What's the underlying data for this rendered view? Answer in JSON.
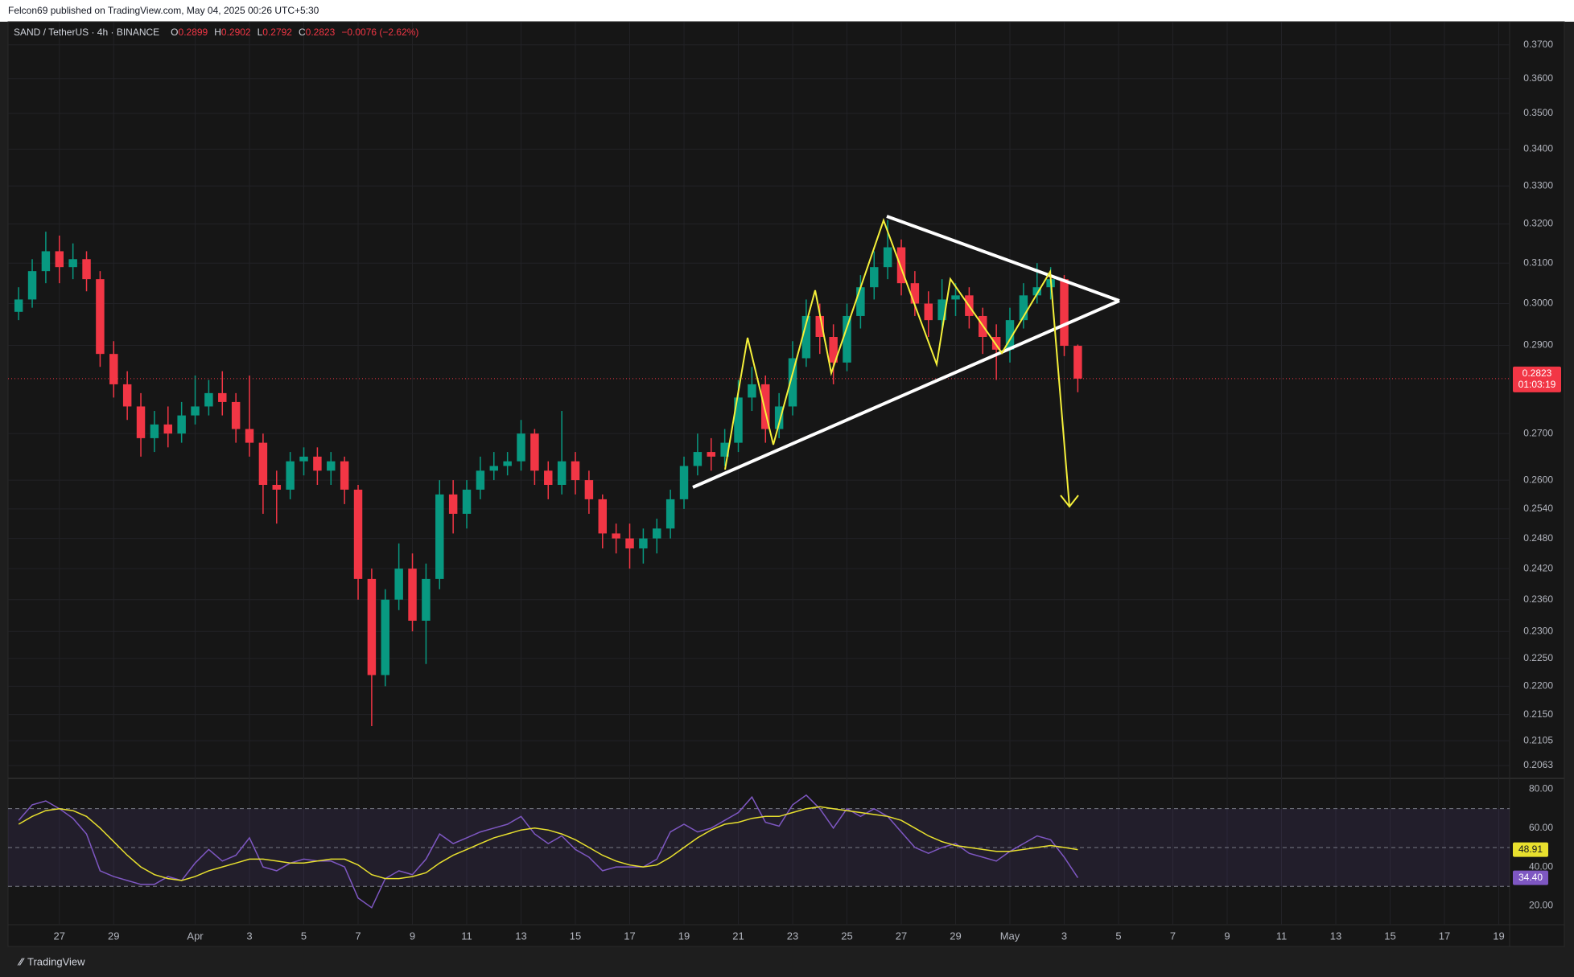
{
  "header": {
    "publisher": "Felcon69 published on TradingView.com, May 04, 2025 00:26 UTC+5:30"
  },
  "footer": {
    "brand": "TradingView"
  },
  "chart_data": [
    {
      "type": "candlestick",
      "symbol": "SAND / TetherUS · 4h · BINANCE",
      "ohlc_letters": [
        "O",
        "H",
        "L",
        "C"
      ],
      "change_label": "−0.0076 (−2.62%)",
      "countdown": "01:03:19",
      "up_color": "#089981",
      "down_color": "#f23645",
      "log_scale": true,
      "grid": true,
      "x": [
        -1.5,
        -1,
        -0.5,
        0,
        0.5,
        1,
        1.5,
        2,
        2.5,
        3,
        3.5,
        4,
        4.5,
        5,
        5.5,
        6,
        6.5,
        7,
        7.5,
        8,
        8.5,
        9,
        9.5,
        10,
        10.5,
        11,
        11.5,
        12,
        12.5,
        13,
        13.5,
        14,
        14.5,
        15,
        15.5,
        16,
        16.5,
        17,
        17.5,
        18,
        18.5,
        19,
        19.5,
        20,
        20.5,
        21,
        21.5,
        22,
        22.5,
        23,
        23.5,
        24,
        24.5,
        25,
        25.5,
        26,
        26.5,
        27,
        27.5,
        28,
        28.5,
        29,
        29.5,
        30,
        30.5,
        31,
        31.5,
        32,
        32.5,
        33,
        33.5,
        34,
        34.5,
        35,
        35.5,
        36,
        36.5,
        37,
        37.5
      ],
      "open": [
        0.298,
        0.301,
        0.308,
        0.313,
        0.309,
        0.311,
        0.306,
        0.288,
        0.281,
        0.276,
        0.269,
        0.272,
        0.27,
        0.274,
        0.276,
        0.279,
        0.277,
        0.271,
        0.268,
        0.259,
        0.258,
        0.264,
        0.265,
        0.262,
        0.264,
        0.258,
        0.24,
        0.222,
        0.236,
        0.242,
        0.232,
        0.24,
        0.257,
        0.253,
        0.258,
        0.262,
        0.263,
        0.264,
        0.27,
        0.262,
        0.259,
        0.264,
        0.26,
        0.256,
        0.249,
        0.248,
        0.246,
        0.248,
        0.25,
        0.256,
        0.263,
        0.266,
        0.265,
        0.268,
        0.278,
        0.281,
        0.271,
        0.276,
        0.287,
        0.297,
        0.292,
        0.286,
        0.297,
        0.304,
        0.309,
        0.314,
        0.305,
        0.3,
        0.296,
        0.301,
        0.302,
        0.297,
        0.292,
        0.289,
        0.296,
        0.302,
        0.304,
        0.306,
        0.2899
      ],
      "high": [
        0.304,
        0.311,
        0.318,
        0.317,
        0.315,
        0.313,
        0.308,
        0.291,
        0.284,
        0.279,
        0.275,
        0.276,
        0.277,
        0.283,
        0.282,
        0.284,
        0.279,
        0.283,
        0.27,
        0.262,
        0.266,
        0.267,
        0.267,
        0.266,
        0.265,
        0.259,
        0.242,
        0.238,
        0.247,
        0.245,
        0.243,
        0.26,
        0.26,
        0.26,
        0.265,
        0.266,
        0.266,
        0.273,
        0.271,
        0.264,
        0.275,
        0.266,
        0.262,
        0.257,
        0.251,
        0.251,
        0.25,
        0.252,
        0.258,
        0.265,
        0.27,
        0.269,
        0.271,
        0.282,
        0.285,
        0.283,
        0.279,
        0.291,
        0.301,
        0.3,
        0.295,
        0.3,
        0.307,
        0.313,
        0.321,
        0.316,
        0.308,
        0.303,
        0.306,
        0.305,
        0.304,
        0.299,
        0.295,
        0.299,
        0.305,
        0.31,
        0.309,
        0.307,
        0.2902
      ],
      "low": [
        0.296,
        0.299,
        0.305,
        0.305,
        0.306,
        0.303,
        0.285,
        0.278,
        0.273,
        0.265,
        0.266,
        0.267,
        0.268,
        0.272,
        0.274,
        0.274,
        0.268,
        0.265,
        0.253,
        0.251,
        0.256,
        0.261,
        0.259,
        0.259,
        0.255,
        0.236,
        0.213,
        0.22,
        0.234,
        0.23,
        0.224,
        0.238,
        0.249,
        0.25,
        0.256,
        0.26,
        0.261,
        0.262,
        0.259,
        0.256,
        0.257,
        0.257,
        0.253,
        0.246,
        0.245,
        0.242,
        0.243,
        0.245,
        0.248,
        0.254,
        0.261,
        0.262,
        0.263,
        0.266,
        0.275,
        0.268,
        0.269,
        0.274,
        0.285,
        0.288,
        0.281,
        0.284,
        0.294,
        0.301,
        0.306,
        0.302,
        0.297,
        0.292,
        0.293,
        0.297,
        0.294,
        0.288,
        0.282,
        0.286,
        0.294,
        0.3,
        0.301,
        0.2875,
        0.2792
      ],
      "close": [
        0.301,
        0.308,
        0.313,
        0.309,
        0.311,
        0.306,
        0.288,
        0.281,
        0.276,
        0.269,
        0.272,
        0.27,
        0.274,
        0.276,
        0.279,
        0.277,
        0.271,
        0.268,
        0.259,
        0.258,
        0.264,
        0.265,
        0.262,
        0.264,
        0.258,
        0.24,
        0.222,
        0.236,
        0.242,
        0.232,
        0.24,
        0.257,
        0.253,
        0.258,
        0.262,
        0.263,
        0.264,
        0.27,
        0.262,
        0.259,
        0.264,
        0.26,
        0.256,
        0.249,
        0.248,
        0.246,
        0.248,
        0.25,
        0.256,
        0.263,
        0.266,
        0.265,
        0.268,
        0.278,
        0.281,
        0.271,
        0.276,
        0.287,
        0.297,
        0.292,
        0.286,
        0.297,
        0.304,
        0.309,
        0.314,
        0.305,
        0.3,
        0.296,
        0.301,
        0.302,
        0.297,
        0.292,
        0.289,
        0.296,
        0.302,
        0.304,
        0.306,
        0.2899,
        0.2823
      ],
      "ylim": [
        0.2043,
        0.377
      ],
      "yticks": [
        {
          "value": 0.37,
          "label": "0.3700"
        },
        {
          "value": 0.36,
          "label": "0.3600"
        },
        {
          "value": 0.35,
          "label": "0.3500"
        },
        {
          "value": 0.34,
          "label": "0.3400"
        },
        {
          "value": 0.33,
          "label": "0.3300"
        },
        {
          "value": 0.32,
          "label": "0.3200"
        },
        {
          "value": 0.31,
          "label": "0.3100"
        },
        {
          "value": 0.3,
          "label": "0.3000"
        },
        {
          "value": 0.29,
          "label": "0.2900"
        },
        {
          "value": 0.27,
          "label": "0.2700"
        },
        {
          "value": 0.26,
          "label": "0.2600"
        },
        {
          "value": 0.254,
          "label": "0.2540"
        },
        {
          "value": 0.248,
          "label": "0.2480"
        },
        {
          "value": 0.242,
          "label": "0.2420"
        },
        {
          "value": 0.236,
          "label": "0.2360"
        },
        {
          "value": 0.23,
          "label": "0.2300"
        },
        {
          "value": 0.225,
          "label": "0.2250"
        },
        {
          "value": 0.22,
          "label": "0.2200"
        },
        {
          "value": 0.215,
          "label": "0.2150"
        },
        0.2105,
        0.2063
      ],
      "xlim": [
        -1.89,
        53.4
      ],
      "xticks": [
        {
          "value": 0,
          "label": "27"
        },
        {
          "value": 2,
          "label": "29"
        },
        {
          "value": 5,
          "label": "Apr"
        },
        {
          "value": 7,
          "label": "3"
        },
        {
          "value": 9,
          "label": "5"
        },
        {
          "value": 11,
          "label": "7"
        },
        {
          "value": 13,
          "label": "9"
        },
        {
          "value": 15,
          "label": "11"
        },
        {
          "value": 17,
          "label": "13"
        },
        {
          "value": 19,
          "label": "15"
        },
        {
          "value": 21,
          "label": "17"
        },
        {
          "value": 23,
          "label": "19"
        },
        {
          "value": 25,
          "label": "21"
        },
        {
          "value": 27,
          "label": "23"
        },
        {
          "value": 29,
          "label": "25"
        },
        {
          "value": 31,
          "label": "27"
        },
        {
          "value": 33,
          "label": "29"
        },
        {
          "value": 35,
          "label": "May"
        },
        {
          "value": 37,
          "label": "3"
        },
        {
          "value": 39,
          "label": "5"
        },
        {
          "value": 41,
          "label": "7"
        },
        {
          "value": 43,
          "label": "9"
        },
        {
          "value": 45,
          "label": "11"
        },
        {
          "value": 47,
          "label": "13"
        },
        {
          "value": 49,
          "label": "15"
        },
        {
          "value": 51,
          "label": "17"
        },
        {
          "value": 53,
          "label": "19"
        }
      ]
    },
    {
      "type": "line",
      "x": [
        -1.5,
        -1,
        -0.5,
        0,
        0.5,
        1,
        1.5,
        2,
        2.5,
        3,
        3.5,
        4,
        4.5,
        5,
        5.5,
        6,
        6.5,
        7,
        7.5,
        8,
        8.5,
        9,
        9.5,
        10,
        10.5,
        11,
        11.5,
        12,
        12.5,
        13,
        13.5,
        14,
        14.5,
        15,
        15.5,
        16,
        16.5,
        17,
        17.5,
        18,
        18.5,
        19,
        19.5,
        20,
        20.5,
        21,
        21.5,
        22,
        22.5,
        23,
        23.5,
        24,
        24.5,
        25,
        25.5,
        26,
        26.5,
        27,
        27.5,
        28,
        28.5,
        29,
        29.5,
        30,
        30.5,
        31,
        31.5,
        32,
        32.5,
        33,
        33.5,
        34,
        34.5,
        35,
        35.5,
        36,
        36.5,
        37,
        37.5
      ],
      "series": [
        {
          "color": "#7e57c2",
          "values": [
            64,
            72,
            74,
            70,
            65,
            57,
            38,
            35,
            33,
            31,
            31,
            35,
            33,
            42,
            49,
            43,
            46,
            55,
            40,
            38,
            42,
            44,
            43,
            43,
            40,
            24,
            19,
            34,
            38,
            36,
            44,
            57,
            52,
            55,
            58,
            60,
            62,
            66,
            57,
            52,
            56,
            49,
            45,
            38,
            40,
            40,
            40,
            44,
            58,
            62,
            58,
            60,
            64,
            68,
            76,
            63,
            61,
            72,
            77,
            70,
            60,
            70,
            66,
            70,
            66,
            58,
            50,
            47,
            50,
            52,
            47,
            45,
            43,
            48,
            52,
            56,
            54,
            45,
            34.4
          ],
          "value_labels": [
            null,
            null,
            null,
            null,
            null,
            null,
            null,
            null,
            null,
            null,
            null,
            null,
            null,
            null,
            null,
            null,
            null,
            null,
            null,
            null,
            null,
            null,
            null,
            null,
            null,
            null,
            null,
            null,
            null,
            null,
            null,
            null,
            null,
            null,
            null,
            null,
            null,
            null,
            null,
            null,
            null,
            null,
            null,
            null,
            null,
            null,
            null,
            null,
            null,
            null,
            null,
            null,
            null,
            null,
            null,
            null,
            null,
            null,
            null,
            null,
            null,
            null,
            null,
            null,
            null,
            null,
            null,
            null,
            null,
            null,
            null,
            null,
            null,
            null,
            null,
            null,
            null,
            null,
            "34.40"
          ]
        },
        {
          "color": "#e8e02e",
          "values": [
            62,
            66,
            69,
            70,
            69,
            66,
            60,
            53,
            46,
            40,
            36,
            34,
            33,
            35,
            38,
            40,
            42,
            44,
            44,
            43,
            42,
            42,
            43,
            44,
            44,
            41,
            36,
            34,
            34,
            35,
            37,
            42,
            46,
            49,
            52,
            55,
            57,
            59,
            60,
            59,
            57,
            54,
            50,
            46,
            43,
            41,
            40,
            41,
            45,
            50,
            55,
            59,
            62,
            63,
            65,
            66,
            66,
            68,
            70,
            71,
            70,
            69,
            68,
            67,
            66,
            64,
            60,
            56,
            53,
            51,
            50,
            49,
            48,
            48,
            49,
            50,
            51,
            50,
            48.91
          ]
        }
      ],
      "band_upper": 70,
      "band_middle": 50,
      "band_lower": 30,
      "band_color": "#7e57c2",
      "ylim": [
        10.2,
        85.2
      ],
      "yticks": [
        {
          "value": 80,
          "label": "80.00"
        },
        {
          "value": 60,
          "label": "60.00"
        },
        {
          "value": 40,
          "label": "40.00"
        },
        {
          "value": 20,
          "label": "20.00"
        }
      ]
    }
  ]
}
